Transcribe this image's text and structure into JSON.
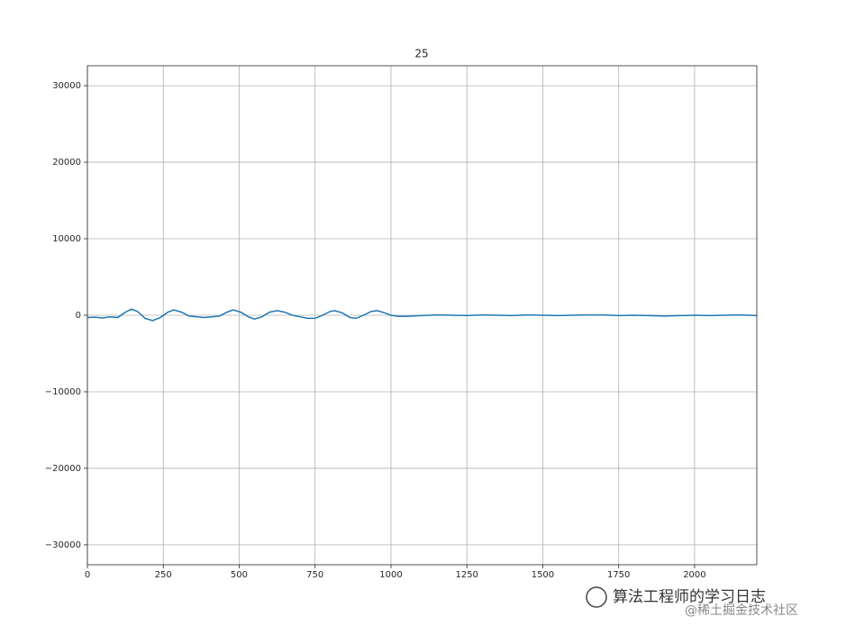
{
  "chart_data": {
    "type": "line",
    "title": "25",
    "x": [
      0,
      25,
      50,
      75,
      100,
      125,
      145,
      165,
      190,
      215,
      240,
      265,
      285,
      310,
      335,
      360,
      385,
      410,
      435,
      460,
      480,
      505,
      530,
      550,
      575,
      600,
      625,
      650,
      675,
      700,
      725,
      750,
      775,
      800,
      815,
      840,
      865,
      885,
      910,
      935,
      955,
      980,
      1000,
      1025,
      1050,
      1100,
      1150,
      1200,
      1250,
      1300,
      1350,
      1400,
      1450,
      1500,
      1550,
      1600,
      1650,
      1700,
      1750,
      1800,
      1850,
      1900,
      1950,
      2000,
      2050,
      2100,
      2150,
      2205
    ],
    "series": [
      {
        "name": "25",
        "color": "#1f77b4",
        "values": [
          -300,
          -250,
          -350,
          -200,
          -300,
          400,
          800,
          500,
          -400,
          -700,
          -300,
          400,
          700,
          400,
          -100,
          -200,
          -300,
          -200,
          -100,
          400,
          700,
          400,
          -200,
          -500,
          -200,
          400,
          600,
          400,
          0,
          -200,
          -400,
          -400,
          0,
          500,
          600,
          300,
          -300,
          -400,
          0,
          500,
          600,
          300,
          0,
          -150,
          -150,
          -50,
          50,
          0,
          -50,
          50,
          0,
          -50,
          50,
          0,
          -50,
          0,
          50,
          50,
          -50,
          0,
          -50,
          -100,
          -50,
          0,
          -50,
          0,
          50,
          -50
        ]
      }
    ],
    "xlim": [
      0,
      2205
    ],
    "ylim": [
      -32600,
      32600
    ],
    "xticks": [
      0,
      250,
      500,
      750,
      1000,
      1250,
      1500,
      1750,
      2000
    ],
    "yticks": [
      {
        "value": -30000,
        "label": "−30000"
      },
      {
        "value": -20000,
        "label": "−20000"
      },
      {
        "value": -10000,
        "label": "−10000"
      },
      0,
      10000,
      20000,
      30000
    ],
    "grid": true
  },
  "watermark": {
    "account": "算法工程师的学习日志",
    "source": "@稀土掘金技术社区"
  }
}
